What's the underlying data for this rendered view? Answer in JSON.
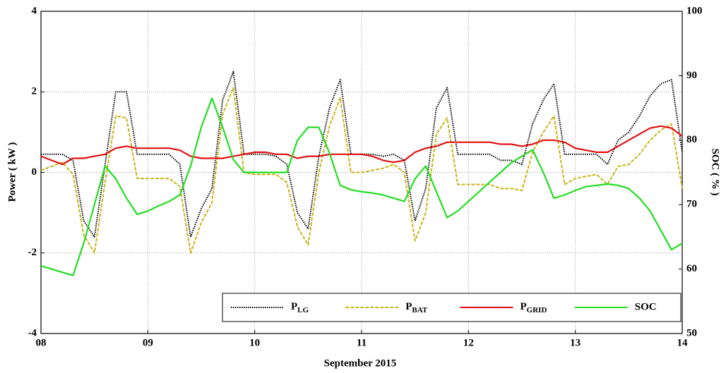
{
  "chart_data": {
    "type": "line",
    "x_label": "September 2015",
    "y_label": "Power ( kW )",
    "y2_label": "SOC ( % )",
    "x": [
      8,
      8.1,
      8.2,
      8.3,
      8.4,
      8.5,
      8.6,
      8.7,
      8.8,
      8.9,
      9,
      9.1,
      9.2,
      9.3,
      9.4,
      9.5,
      9.6,
      9.7,
      9.8,
      9.9,
      10,
      10.1,
      10.2,
      10.3,
      10.4,
      10.5,
      10.6,
      10.7,
      10.8,
      10.9,
      11,
      11.1,
      11.2,
      11.3,
      11.4,
      11.5,
      11.6,
      11.7,
      11.8,
      11.9,
      12,
      12.1,
      12.2,
      12.3,
      12.4,
      12.5,
      12.6,
      12.7,
      12.8,
      12.9,
      13,
      13.1,
      13.2,
      13.3,
      13.4,
      13.5,
      13.6,
      13.7,
      13.8,
      13.9,
      14
    ],
    "xlim": [
      8,
      14
    ],
    "xticks": [
      {
        "value": 8,
        "label": "08"
      },
      {
        "value": 9,
        "label": "09"
      },
      10,
      11,
      12,
      13,
      14
    ],
    "ylim": [
      -4,
      4
    ],
    "yticks": [
      -4,
      -2,
      0,
      2,
      4
    ],
    "y2lim": [
      50,
      100
    ],
    "y2ticks": [
      50,
      60,
      70,
      80,
      90,
      100
    ],
    "grid": true,
    "legend": "lower right",
    "series": [
      {
        "name": "PLG",
        "color": "#000000",
        "linestyle": "dotted",
        "values": [
          0.45,
          0.45,
          0.45,
          0.3,
          -1.2,
          -1.6,
          0.2,
          2.0,
          2.0,
          0.45,
          0.45,
          0.45,
          0.45,
          0.2,
          -1.6,
          -0.9,
          -0.4,
          1.8,
          2.5,
          0.45,
          0.45,
          0.45,
          0.4,
          0.2,
          -1.0,
          -1.4,
          0.4,
          1.6,
          2.3,
          0.45,
          0.45,
          0.45,
          0.4,
          0.45,
          0.3,
          -1.2,
          -0.4,
          1.6,
          2.1,
          0.45,
          0.45,
          0.45,
          0.45,
          0.3,
          0.3,
          0.2,
          1.2,
          1.8,
          2.2,
          0.45,
          0.45,
          0.45,
          0.45,
          0.2,
          0.8,
          1.0,
          1.4,
          1.9,
          2.2,
          2.3,
          0.5
        ]
      },
      {
        "name": "PBAT",
        "color": "#c8b418",
        "linestyle": "dashed",
        "values": [
          0.05,
          0.15,
          0.25,
          -0.05,
          -1.55,
          -2.0,
          -0.25,
          1.4,
          1.35,
          -0.15,
          -0.15,
          -0.15,
          -0.15,
          -0.35,
          -2.0,
          -1.25,
          -0.75,
          1.45,
          2.1,
          0.0,
          -0.05,
          -0.05,
          -0.05,
          -0.25,
          -1.35,
          -1.8,
          0.0,
          1.15,
          1.85,
          0.0,
          0.0,
          0.05,
          0.1,
          0.2,
          0.0,
          -1.7,
          -1.0,
          0.95,
          1.35,
          -0.3,
          -0.3,
          -0.3,
          -0.3,
          -0.4,
          -0.4,
          -0.45,
          0.5,
          1.0,
          1.4,
          -0.3,
          -0.15,
          -0.1,
          -0.05,
          -0.3,
          0.15,
          0.2,
          0.45,
          0.8,
          1.05,
          1.2,
          -0.4
        ]
      },
      {
        "name": "PGRID",
        "color": "#e01010",
        "linestyle": "solid",
        "values": [
          0.4,
          0.3,
          0.2,
          0.35,
          0.35,
          0.4,
          0.45,
          0.6,
          0.65,
          0.6,
          0.6,
          0.6,
          0.6,
          0.55,
          0.4,
          0.35,
          0.35,
          0.35,
          0.4,
          0.45,
          0.5,
          0.5,
          0.45,
          0.45,
          0.35,
          0.4,
          0.4,
          0.45,
          0.45,
          0.45,
          0.45,
          0.4,
          0.3,
          0.25,
          0.3,
          0.5,
          0.6,
          0.65,
          0.75,
          0.75,
          0.75,
          0.75,
          0.75,
          0.7,
          0.7,
          0.65,
          0.7,
          0.8,
          0.8,
          0.75,
          0.6,
          0.55,
          0.5,
          0.5,
          0.65,
          0.8,
          0.95,
          1.1,
          1.15,
          1.1,
          0.9
        ]
      },
      {
        "name": "SOC",
        "color": "#22dd22",
        "linestyle": "solid",
        "axis": "y2",
        "values": [
          60.5,
          60,
          59.5,
          59,
          64,
          70,
          76,
          74,
          71,
          68.5,
          69,
          69.8,
          70.5,
          71.5,
          76,
          82,
          86.5,
          82,
          77,
          75,
          75,
          75,
          75,
          75,
          80,
          82,
          82,
          78,
          73,
          72.3,
          72,
          71.8,
          71.5,
          71,
          70.5,
          74,
          76,
          72,
          68,
          69,
          70.5,
          72,
          73.5,
          75,
          76.5,
          77.5,
          78.5,
          75,
          71,
          71.5,
          72.2,
          72.8,
          73,
          73.2,
          73,
          72.5,
          71,
          69,
          66,
          63,
          64
        ]
      }
    ]
  }
}
